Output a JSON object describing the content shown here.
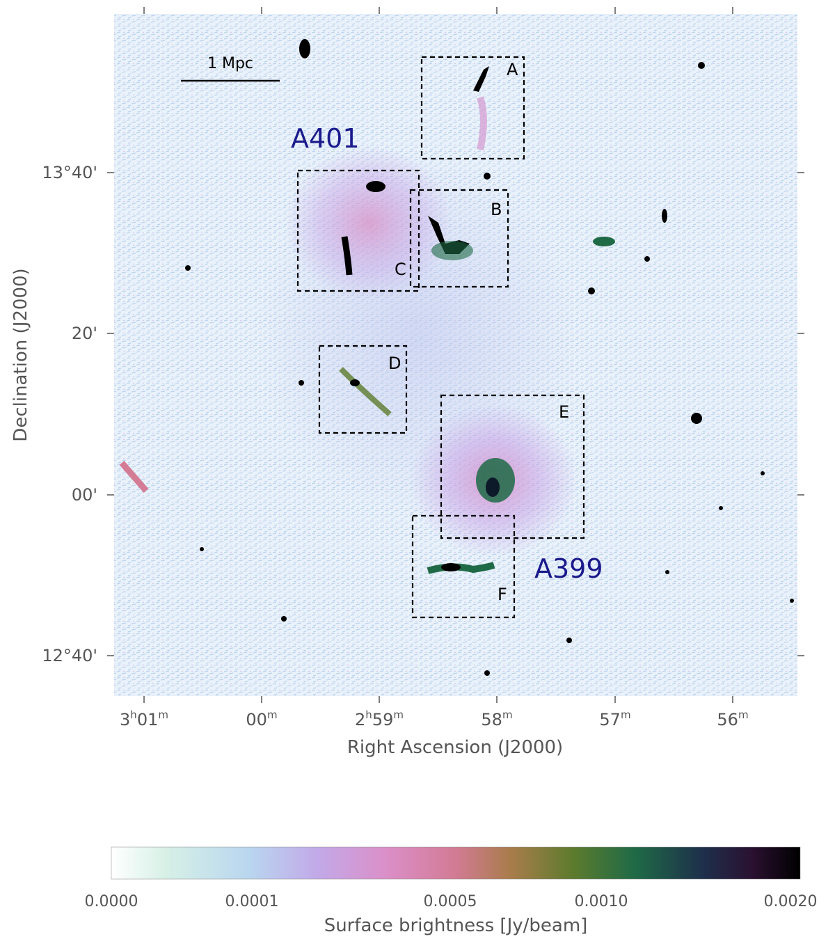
{
  "image": {
    "clusters": [
      {
        "id": "a401",
        "label": "A401"
      },
      {
        "id": "a399",
        "label": "A399"
      }
    ],
    "regions": [
      {
        "id": "A",
        "label": "A"
      },
      {
        "id": "B",
        "label": "B"
      },
      {
        "id": "C",
        "label": "C"
      },
      {
        "id": "D",
        "label": "D"
      },
      {
        "id": "E",
        "label": "E"
      },
      {
        "id": "F",
        "label": "F"
      }
    ],
    "scale_bar": {
      "label": "1 Mpc"
    }
  },
  "axes": {
    "x": {
      "title": "Right Ascension (J2000)",
      "ticks": [
        {
          "main": "3",
          "sup1": "h",
          "mid": "01",
          "sup2": "m"
        },
        {
          "main": "",
          "sup1": "",
          "mid": "00",
          "sup2": "m"
        },
        {
          "main": "2",
          "sup1": "h",
          "mid": "59",
          "sup2": "m"
        },
        {
          "main": "",
          "sup1": "",
          "mid": "58",
          "sup2": "m"
        },
        {
          "main": "",
          "sup1": "",
          "mid": "57",
          "sup2": "m"
        },
        {
          "main": "",
          "sup1": "",
          "mid": "56",
          "sup2": "m"
        }
      ]
    },
    "y": {
      "title": "Declination (J2000)",
      "ticks": [
        "13°40'",
        "20'",
        "00'",
        "12°40'"
      ]
    }
  },
  "colorbar": {
    "title": "Surface brightness [Jy/beam]",
    "ticks": [
      "0.0000",
      "0.0001",
      "0.0005",
      "0.0010",
      "0.0020"
    ],
    "colors": [
      "#ffffff",
      "#cfeee0",
      "#b8d6ef",
      "#c3a8e8",
      "#dd8ec8",
      "#d47c96",
      "#a87c4a",
      "#5c7a2c",
      "#1f6a45",
      "#1d2f4a",
      "#2a1030",
      "#000000"
    ]
  }
}
